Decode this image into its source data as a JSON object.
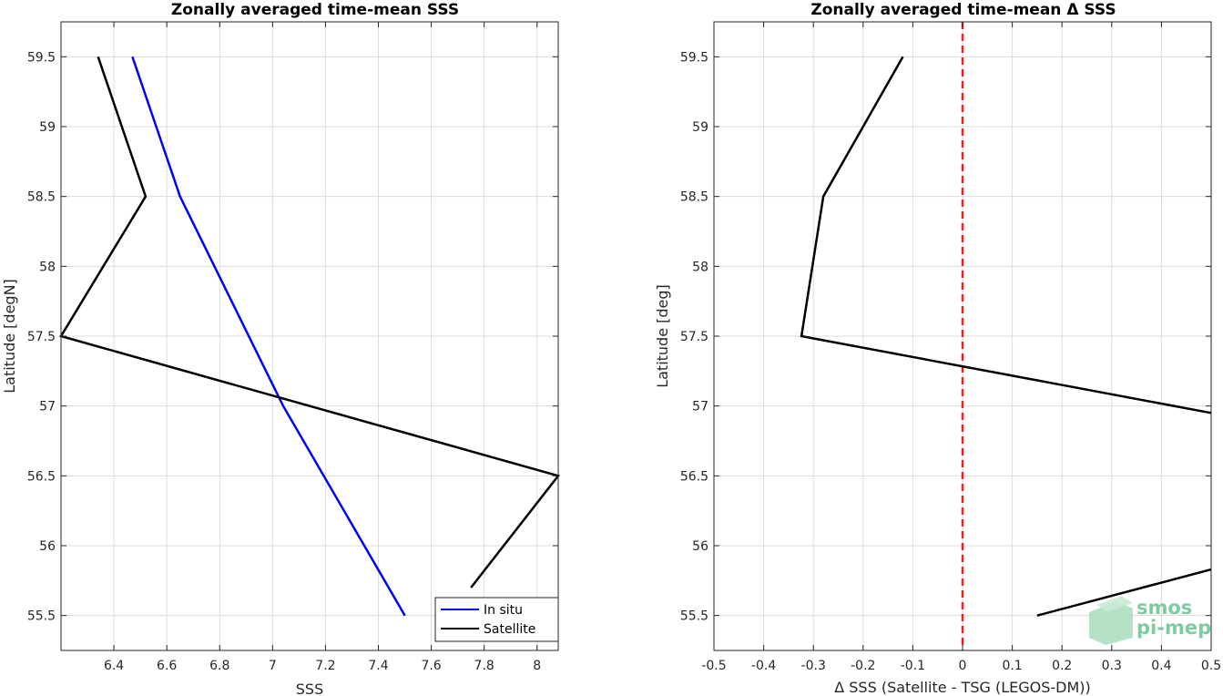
{
  "chart_data": [
    {
      "type": "line",
      "title": "Zonally averaged time-mean SSS",
      "xlabel": "SSS",
      "ylabel": "Latitude [degN]",
      "xlim": [
        6.2,
        8.08
      ],
      "ylim": [
        55.25,
        59.75
      ],
      "xticks": [
        "6.4",
        "6.6",
        "6.8",
        "7",
        "7.2",
        "7.4",
        "7.6",
        "7.8",
        "8"
      ],
      "xtick_values": [
        6.4,
        6.6,
        6.8,
        7.0,
        7.2,
        7.4,
        7.6,
        7.8,
        8.0
      ],
      "yticks": [
        "55.5",
        "56",
        "56.5",
        "57",
        "57.5",
        "58",
        "58.5",
        "59",
        "59.5"
      ],
      "ytick_values": [
        55.5,
        56.0,
        56.5,
        57.0,
        57.5,
        58.0,
        58.5,
        59.0,
        59.5
      ],
      "grid": true,
      "legend_position": "bottom-right",
      "series": [
        {
          "name": "In situ",
          "color": "#0000ff",
          "points": [
            [
              7.5,
              55.5
            ],
            [
              7.04,
              57.0
            ],
            [
              6.91,
              57.5
            ],
            [
              6.65,
              58.5
            ],
            [
              6.47,
              59.5
            ]
          ]
        },
        {
          "name": "Satellite",
          "color": "#000000",
          "points": [
            [
              7.75,
              55.7
            ],
            [
              8.08,
              56.5
            ],
            [
              6.2,
              57.5
            ],
            [
              6.52,
              58.5
            ],
            [
              6.34,
              59.5
            ]
          ]
        }
      ]
    },
    {
      "type": "line",
      "title": "Zonally averaged time-mean Δ SSS",
      "xlabel": "Δ SSS (Satellite - TSG (LEGOS-DM))",
      "ylabel": "Latitude [deg]",
      "xlim": [
        -0.5,
        0.5
      ],
      "ylim": [
        55.25,
        59.75
      ],
      "xticks": [
        "-0.5",
        "-0.4",
        "-0.3",
        "-0.2",
        "-0.1",
        "0",
        "0.1",
        "0.2",
        "0.3",
        "0.4",
        "0.5"
      ],
      "xtick_values": [
        -0.5,
        -0.4,
        -0.3,
        -0.2,
        -0.1,
        0,
        0.1,
        0.2,
        0.3,
        0.4,
        0.5
      ],
      "yticks": [
        "55.5",
        "56",
        "56.5",
        "57",
        "57.5",
        "58",
        "58.5",
        "59",
        "59.5"
      ],
      "ytick_values": [
        55.5,
        56.0,
        56.5,
        57.0,
        57.5,
        58.0,
        58.5,
        59.0,
        59.5
      ],
      "grid": true,
      "series": [
        {
          "color": "#000000",
          "segments": [
            [
              [
                0.15,
                55.5
              ],
              [
                0.5,
                55.83
              ]
            ],
            [
              [
                0.5,
                56.95
              ],
              [
                -0.324,
                57.5
              ],
              [
                -0.28,
                58.5
              ],
              [
                -0.12,
                59.5
              ]
            ]
          ]
        }
      ],
      "reference_line": {
        "x": 0,
        "color": "#e32222",
        "style": "dashed"
      }
    }
  ],
  "logo": {
    "line1": "smos",
    "line2": "pi-mep"
  }
}
